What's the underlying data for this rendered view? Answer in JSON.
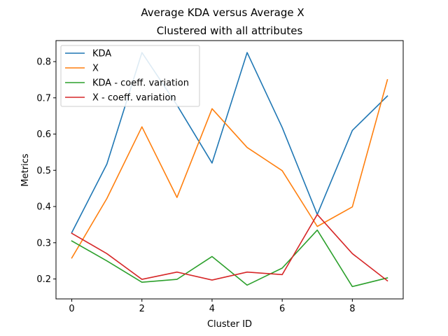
{
  "chart_data": {
    "type": "line",
    "title": "Average KDA versus Average X",
    "subtitle": "Clustered with all attributes",
    "xlabel": "Cluster ID",
    "ylabel": "Metrics",
    "x": [
      0,
      1,
      2,
      3,
      4,
      5,
      6,
      7,
      8,
      9
    ],
    "xlim": [
      -0.45,
      9.45
    ],
    "ylim": [
      0.145,
      0.858
    ],
    "xticks": [
      0,
      2,
      4,
      6,
      8
    ],
    "yticks": [
      0.2,
      0.3,
      0.4,
      0.5,
      0.6,
      0.7,
      0.8
    ],
    "grid": false,
    "legend_position": "top-left",
    "series": [
      {
        "name": "KDA",
        "color": "#1f77b4",
        "values": [
          0.328,
          0.517,
          0.825,
          0.68,
          0.52,
          0.825,
          0.618,
          0.378,
          0.61,
          0.705
        ]
      },
      {
        "name": "X",
        "color": "#ff7f0e",
        "values": [
          0.258,
          0.422,
          0.62,
          0.425,
          0.67,
          0.563,
          0.499,
          0.345,
          0.399,
          0.75
        ]
      },
      {
        "name": "KDA - coeff. variation",
        "color": "#2ca02c",
        "values": [
          0.305,
          0.25,
          0.191,
          0.199,
          0.262,
          0.183,
          0.23,
          0.335,
          0.179,
          0.203
        ]
      },
      {
        "name": "X - coeff. variation",
        "color": "#d62728",
        "values": [
          0.326,
          0.27,
          0.199,
          0.219,
          0.197,
          0.219,
          0.212,
          0.378,
          0.27,
          0.195
        ]
      }
    ]
  }
}
